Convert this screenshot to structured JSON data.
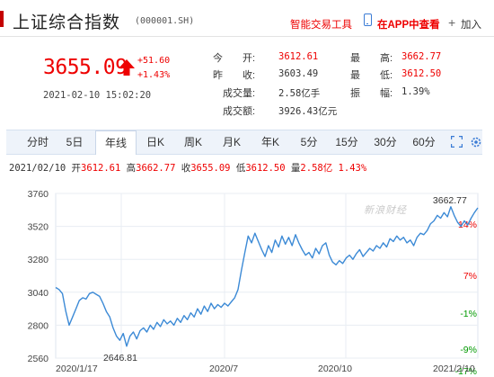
{
  "header": {
    "index_name": "上证综合指数",
    "index_code": "(000001.SH)",
    "tool_link": "智能交易工具",
    "app_link": "在APP中查看",
    "join_link": "加入",
    "accent_color": "#c40000"
  },
  "quote": {
    "last": "3655.09",
    "change_abs": "+51.60",
    "change_pct": "+1.43%",
    "time": "2021-02-10 15:02:20",
    "up_color": "#ee0000"
  },
  "stats": [
    {
      "label": "今　　开:",
      "value": "3612.61",
      "tone": "red"
    },
    {
      "label": "最　　高:",
      "value": "3662.77",
      "tone": "red"
    },
    {
      "label": "昨　　收:",
      "value": "3603.49",
      "tone": "plain"
    },
    {
      "label": "最　　低:",
      "value": "3612.50",
      "tone": "red"
    },
    {
      "label": "成交量:",
      "value": "2.58亿手",
      "tone": "plain"
    },
    {
      "label": "振　　幅:",
      "value": "1.39%",
      "tone": "plain"
    },
    {
      "label": "成交额:",
      "value": "3926.43亿元",
      "tone": "plain"
    }
  ],
  "tabs": [
    {
      "label": "分时",
      "active": false
    },
    {
      "label": "5日",
      "active": false
    },
    {
      "label": "年线",
      "active": true
    },
    {
      "label": "日K",
      "active": false
    },
    {
      "label": "周K",
      "active": false
    },
    {
      "label": "月K",
      "active": false
    },
    {
      "label": "年K",
      "active": false
    },
    {
      "label": "5分",
      "active": false
    },
    {
      "label": "15分",
      "active": false
    },
    {
      "label": "30分",
      "active": false
    },
    {
      "label": "60分",
      "active": false
    }
  ],
  "toolbar_icons": [
    "fullscreen-icon",
    "settings-icon"
  ],
  "ohlc": {
    "date": "2021/02/10",
    "open_label": "开",
    "open": "3612.61",
    "high_label": "高",
    "high": "3662.77",
    "close_label": "收",
    "close": "3655.09",
    "low_label": "低",
    "low": "3612.50",
    "vol_label": "量",
    "vol": "2.58亿",
    "pct": "1.43%"
  },
  "watermark": "新浪财经",
  "chart_data": {
    "type": "line",
    "title": "",
    "xlabel": "",
    "ylabel": "",
    "line_color": "#3c8ad6",
    "ylim": [
      2560,
      3760
    ],
    "y_ticks_left": [
      "3760",
      "3520",
      "3280",
      "3040",
      "2800",
      "2560"
    ],
    "y_ticks_right": [
      "14%",
      "7%",
      "-1%",
      "-9%",
      "-17%"
    ],
    "y_right_colors": [
      "#e00",
      "#e00",
      "#009900",
      "#009900",
      "#009900"
    ],
    "x_ticks": [
      "2020/1/17",
      "2020/7",
      "2020/10",
      "2021/2/10"
    ],
    "grid": true,
    "annotations": [
      {
        "text": "3662.77",
        "kind": "max"
      },
      {
        "text": "2646.81",
        "kind": "min"
      }
    ],
    "series": [
      {
        "values": [
          3075,
          3060,
          3030,
          2900,
          2800,
          2860,
          2920,
          2980,
          3000,
          2990,
          3030,
          3040,
          3025,
          3010,
          2960,
          2900,
          2860,
          2780,
          2720,
          2690,
          2740,
          2646.81,
          2720,
          2750,
          2700,
          2760,
          2780,
          2750,
          2800,
          2770,
          2820,
          2790,
          2840,
          2810,
          2830,
          2800,
          2850,
          2820,
          2870,
          2840,
          2890,
          2860,
          2920,
          2880,
          2940,
          2900,
          2960,
          2920,
          2950,
          2930,
          2960,
          2940,
          2970,
          3000,
          3060,
          3200,
          3330,
          3450,
          3400,
          3470,
          3410,
          3350,
          3300,
          3380,
          3330,
          3420,
          3370,
          3450,
          3390,
          3440,
          3380,
          3460,
          3400,
          3350,
          3310,
          3330,
          3290,
          3360,
          3320,
          3380,
          3400,
          3310,
          3260,
          3240,
          3270,
          3250,
          3290,
          3310,
          3280,
          3320,
          3350,
          3300,
          3330,
          3360,
          3340,
          3380,
          3360,
          3400,
          3370,
          3430,
          3410,
          3450,
          3420,
          3440,
          3400,
          3420,
          3380,
          3440,
          3470,
          3460,
          3490,
          3540,
          3560,
          3600,
          3580,
          3620,
          3590,
          3662.77,
          3600,
          3550,
          3520,
          3560,
          3530,
          3580,
          3620,
          3655.09
        ]
      }
    ]
  }
}
